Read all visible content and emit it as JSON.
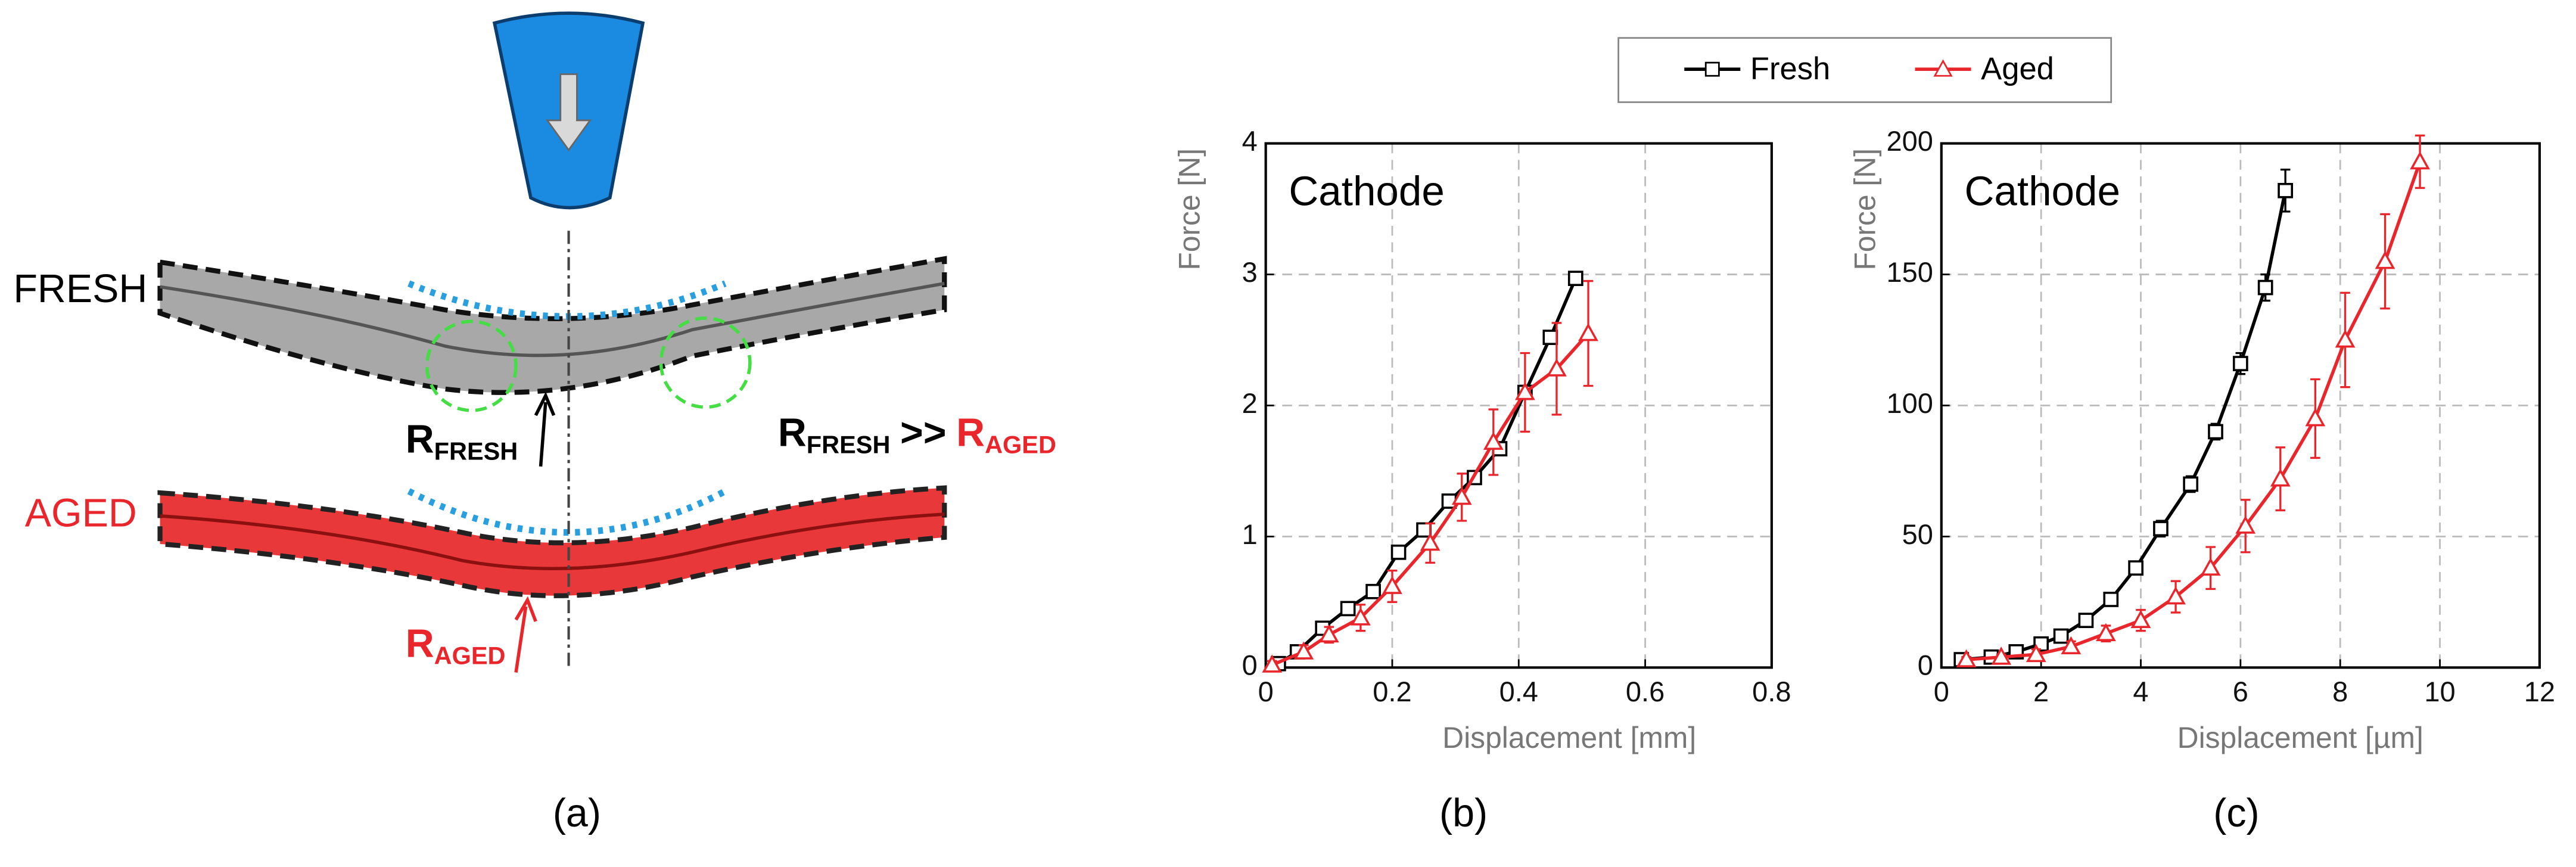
{
  "diagram": {
    "fresh_label": "FRESH",
    "aged_label": "AGED",
    "r_fresh": {
      "main": "R",
      "sub": "FRESH"
    },
    "r_aged": {
      "main": "R",
      "sub": "AGED"
    },
    "comparison": {
      "left_main": "R",
      "left_sub": "FRESH",
      "operator": ">>",
      "right_main": "R",
      "right_sub": "AGED"
    },
    "panel_label": "(a)"
  },
  "chart_data": [
    {
      "type": "line",
      "panel_label": "(b)",
      "annotation": "Cathode",
      "x_label": "Displacement [mm]",
      "y_label": "Force [N]",
      "xlim": [
        0,
        0.8
      ],
      "xticks": [
        0,
        0.2,
        0.4,
        0.6,
        0.8
      ],
      "ylim": [
        0,
        4
      ],
      "yticks": [
        0,
        1,
        2,
        3,
        4
      ],
      "grid": true,
      "series": [
        {
          "name": "Fresh",
          "color": "#000000",
          "marker": "square",
          "x": [
            0.02,
            0.05,
            0.09,
            0.13,
            0.17,
            0.21,
            0.25,
            0.29,
            0.33,
            0.37,
            0.41,
            0.45,
            0.49
          ],
          "values": [
            0.03,
            0.12,
            0.3,
            0.45,
            0.58,
            0.88,
            1.05,
            1.27,
            1.45,
            1.67,
            2.1,
            2.52,
            2.97
          ]
        },
        {
          "name": "Aged",
          "color": "#e8262b",
          "marker": "triangle",
          "x": [
            0.01,
            0.06,
            0.1,
            0.15,
            0.2,
            0.26,
            0.31,
            0.36,
            0.41,
            0.46,
            0.51
          ],
          "values": [
            0.02,
            0.12,
            0.25,
            0.38,
            0.62,
            0.95,
            1.3,
            1.72,
            2.1,
            2.28,
            2.55
          ],
          "errors": [
            0.03,
            0.05,
            0.06,
            0.1,
            0.12,
            0.15,
            0.18,
            0.25,
            0.3,
            0.35,
            0.4
          ]
        }
      ]
    },
    {
      "type": "line",
      "panel_label": "(c)",
      "annotation": "Cathode",
      "x_label": "Displacement [µm]",
      "y_label": "Force [N]",
      "xlim": [
        0,
        12
      ],
      "xticks": [
        0,
        2,
        4,
        6,
        8,
        10,
        12
      ],
      "ylim": [
        0,
        200
      ],
      "yticks": [
        0,
        50,
        100,
        150,
        200
      ],
      "grid": true,
      "series": [
        {
          "name": "Fresh",
          "color": "#000000",
          "marker": "square",
          "x": [
            0.4,
            1,
            1.5,
            2,
            2.4,
            2.9,
            3.4,
            3.9,
            4.4,
            5,
            5.5,
            6,
            6.5,
            6.9
          ],
          "values": [
            3,
            4,
            6,
            9,
            12,
            18,
            26,
            38,
            53,
            70,
            90,
            116,
            145,
            182
          ],
          "errors": [
            1,
            1,
            1,
            1,
            1,
            2,
            2,
            2,
            3,
            3,
            3,
            4,
            5,
            8
          ]
        },
        {
          "name": "Aged",
          "color": "#e8262b",
          "marker": "triangle",
          "x": [
            0.5,
            1.2,
            1.9,
            2.6,
            3.3,
            4,
            4.7,
            5.4,
            6.1,
            6.8,
            7.5,
            8.1,
            8.9,
            9.6
          ],
          "values": [
            3,
            4,
            5,
            8,
            13,
            18,
            27,
            38,
            54,
            72,
            95,
            125,
            155,
            193
          ],
          "errors": [
            1,
            1,
            2,
            2,
            3,
            4,
            6,
            8,
            10,
            12,
            15,
            18,
            18,
            10
          ]
        }
      ]
    }
  ]
}
